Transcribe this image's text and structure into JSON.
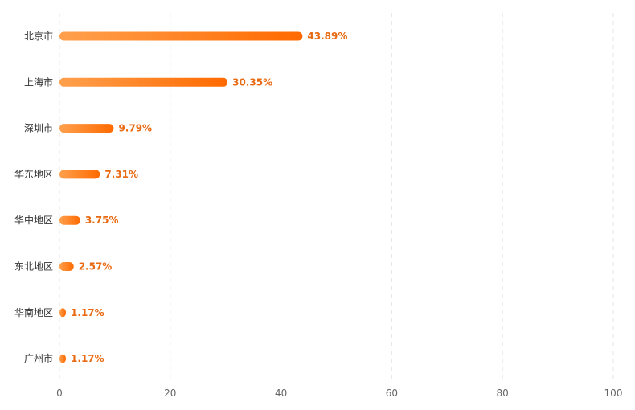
{
  "chart_data": {
    "type": "bar",
    "orientation": "horizontal",
    "categories": [
      "北京市",
      "上海市",
      "深圳市",
      "华东地区",
      "华中地区",
      "东北地区",
      "华南地区",
      "广州市"
    ],
    "values": [
      43.89,
      30.35,
      9.79,
      7.31,
      3.75,
      2.57,
      1.17,
      1.17
    ],
    "value_labels": [
      "43.89%",
      "30.35%",
      "9.79%",
      "7.31%",
      "3.75%",
      "2.57%",
      "1.17%",
      "1.17%"
    ],
    "xlim": [
      0,
      100
    ],
    "x_ticks": [
      0,
      20,
      40,
      60,
      80,
      100
    ],
    "x_tick_labels": [
      "0",
      "20",
      "40",
      "60",
      "80",
      "100"
    ],
    "grid": "vertical-dashed",
    "legend": "none",
    "colors": {
      "bar_start": "#ffa04d",
      "bar_end": "#ff6a00",
      "label": "#e86a12"
    }
  }
}
